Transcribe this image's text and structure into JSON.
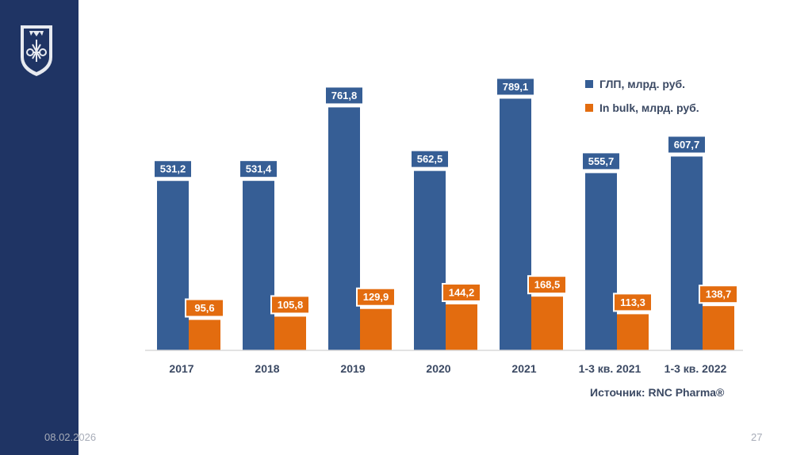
{
  "footer": {
    "date": "08.02.2026",
    "page": "27"
  },
  "colors": {
    "sidebar": "#1f3464",
    "series_glp": "#365e95",
    "series_bulk": "#e36c0f",
    "axis": "#d9d9d9",
    "tick_text": "#3b4963"
  },
  "chart_data": {
    "type": "bar",
    "categories": [
      "2017",
      "2018",
      "2019",
      "2020",
      "2021",
      "1-3 кв. 2021",
      "1-3 кв. 2022"
    ],
    "series": [
      {
        "name": "ГЛП, млрд. руб.",
        "values": [
          531.2,
          531.4,
          761.8,
          562.5,
          789.1,
          555.7,
          607.7
        ],
        "labels": [
          "531,2",
          "531,4",
          "761,8",
          "562,5",
          "789,1",
          "555,7",
          "607,7"
        ]
      },
      {
        "name": "In bulk, млрд. руб.",
        "values": [
          95.6,
          105.8,
          129.9,
          144.2,
          168.5,
          113.3,
          138.7
        ],
        "labels": [
          "95,6",
          "105,8",
          "129,9",
          "144,2",
          "168,5",
          "113,3",
          "138,7"
        ]
      }
    ],
    "ylim": [
      0,
      830
    ],
    "legend_position": "top-right",
    "source": "Источник: RNC Pharma®"
  }
}
